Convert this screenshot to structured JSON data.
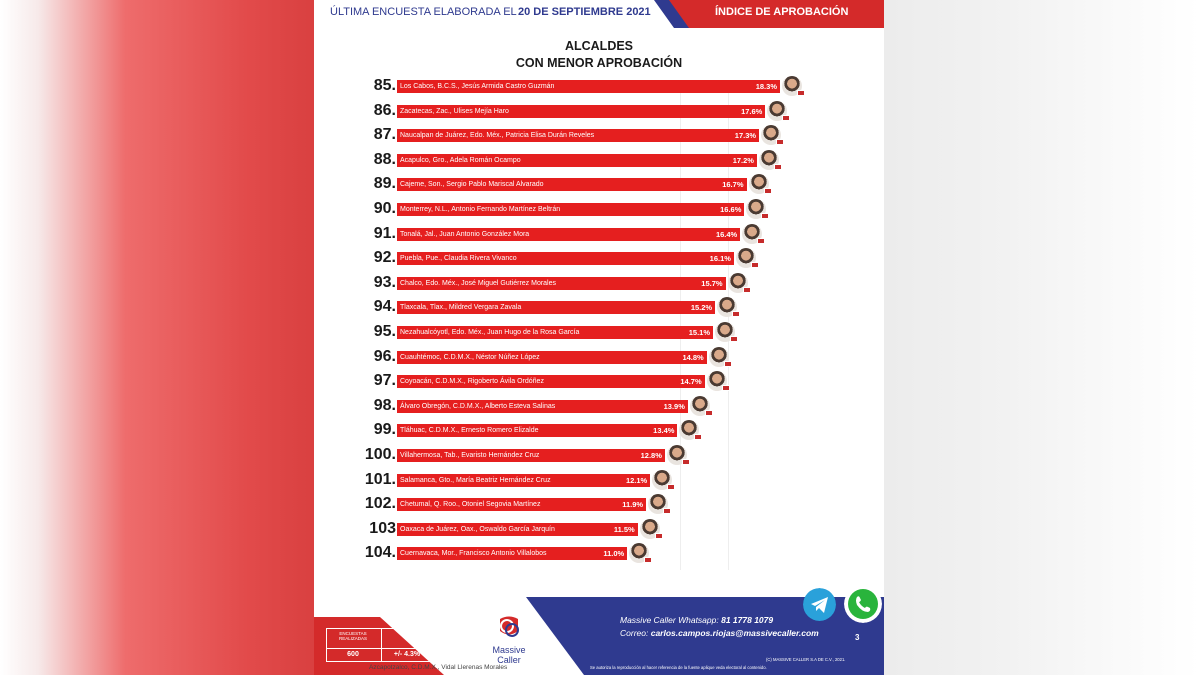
{
  "header": {
    "left_text": "ÚLTIMA ENCUESTA ELABORADA EL",
    "date": "20 DE SEPTIEMBRE 2021",
    "right_text": "ÍNDICE DE APROBACIÓN"
  },
  "title_line1": "ALCALDES",
  "title_line2": "CON MENOR APROBACIÓN",
  "colors": {
    "bar": "#e51f1f",
    "navy": "#2f3a8f",
    "red": "#d42a2a"
  },
  "chart_data": {
    "type": "bar",
    "orientation": "horizontal",
    "categories": [
      "Los Cabos, B.C.S., Jesús Armida Castro Guzmán",
      "Zacatecas, Zac., Ulises Mejía Haro",
      "Naucalpan de Juárez, Edo. Méx., Patricia Elisa Durán Reveles",
      "Acapulco, Gro., Adela Román Ocampo",
      "Cajeme, Son., Sergio Pablo Mariscal Alvarado",
      "Monterrey, N.L., Antonio Fernando Martínez Beltrán",
      "Tonalá, Jal., Juan Antonio González Mora",
      "Puebla, Pue., Claudia Rivera Vivanco",
      "Chalco, Edo. Méx., José Miguel Gutiérrez Morales",
      "Tlaxcala, Tlax., Mildred Vergara Zavala",
      "Nezahualcóyotl, Edo. Méx., Juan Hugo de la Rosa García",
      "Cuauhtémoc, C.D.M.X., Néstor Núñez López",
      "Coyoacán, C.D.M.X., Rigoberto Ávila Ordóñez",
      "Álvaro Obregón, C.D.M.X., Alberto Esteva Salinas",
      "Tláhuac, C.D.M.X., Ernesto Romero Elizalde",
      "Villahermosa, Tab., Evaristo Hernández Cruz",
      "Salamanca, Gto., María Beatriz Hernández Cruz",
      "Chetumal, Q. Roo., Otoniel Segovia Martínez",
      "Oaxaca de Juárez, Oax., Oswaldo García Jarquín",
      "Cuernavaca, Mor., Francisco Antonio Villalobos"
    ],
    "ranks": [
      "85.",
      "86.",
      "87.",
      "88.",
      "89.",
      "90.",
      "91.",
      "92.",
      "93.",
      "94.",
      "95.",
      "96.",
      "97.",
      "98.",
      "99.",
      "100.",
      "101.",
      "102.",
      "103",
      "104."
    ],
    "values": [
      18.3,
      17.6,
      17.3,
      17.2,
      16.7,
      16.6,
      16.4,
      16.1,
      15.7,
      15.2,
      15.1,
      14.8,
      14.7,
      13.9,
      13.4,
      12.8,
      12.1,
      11.9,
      11.5,
      11.0
    ],
    "value_labels": [
      "18.3%",
      "17.6%",
      "17.3%",
      "17.2%",
      "16.7%",
      "16.6%",
      "16.4%",
      "16.1%",
      "15.7%",
      "15.2%",
      "15.1%",
      "14.8%",
      "14.7%",
      "13.9%",
      "13.4%",
      "12.8%",
      "12.1%",
      "11.9%",
      "11.5%",
      "11.0%"
    ],
    "title": "ALCALDES CON MENOR APROBACIÓN"
  },
  "footer": {
    "stats_header_1": "ENCUESTAS REALIZADAS",
    "stats_header_2": "M. E.",
    "stats_value_1": "600",
    "stats_value_2": "+/- 4.3%",
    "logo_name": "Massive Caller",
    "whatsapp_label": "Massive Caller Whatsapp:",
    "whatsapp_number": "81 1778 1079",
    "email_label": "Correo:",
    "email": "carlos.campos.riojas@massivecaller.com",
    "page": "3",
    "legal_1": "(C) MASSIVE CALLER S.A DE C.V., 2021.",
    "legal_2": "Se autoriza la reproducción al hacer referencia de la fuente aplique veda electoral al contenido.",
    "extra_row": "Azcapotzalco, C.D.M.X., Vidal Llerenas Morales",
    "telegram_icon": "telegram-icon",
    "whatsapp_icon": "whatsapp-icon"
  }
}
